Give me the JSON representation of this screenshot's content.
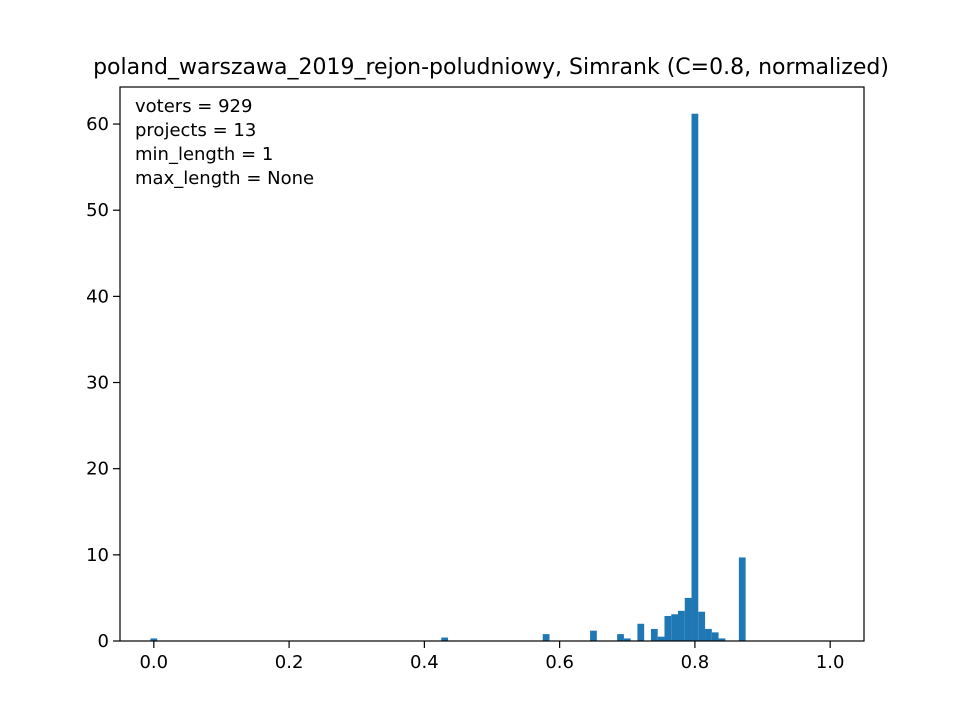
{
  "chart_data": {
    "type": "bar",
    "title": "poland_warszawa_2019_rejon-poludniowy, Simrank (C=0.8, normalized)",
    "xlabel": "",
    "ylabel": "",
    "xlim": [
      -0.05,
      1.05
    ],
    "ylim": [
      0,
      64.3
    ],
    "bin_width": 0.01,
    "x_ticks": [
      0.0,
      0.2,
      0.4,
      0.6,
      0.8,
      1.0
    ],
    "x_tick_labels": [
      "0.0",
      "0.2",
      "0.4",
      "0.6",
      "0.8",
      "1.0"
    ],
    "y_ticks": [
      0,
      10,
      20,
      30,
      40,
      50,
      60
    ],
    "y_tick_labels": [
      "0",
      "10",
      "20",
      "30",
      "40",
      "50",
      "60"
    ],
    "grid": false,
    "bar_color": "#1f77b4",
    "annotations": [
      "voters = 929",
      "projects = 13",
      "min_length = 1",
      "max_length = None"
    ],
    "bins": [
      {
        "x": 0.0,
        "value": 0.3
      },
      {
        "x": 0.43,
        "value": 0.4
      },
      {
        "x": 0.58,
        "value": 0.8
      },
      {
        "x": 0.65,
        "value": 1.2
      },
      {
        "x": 0.69,
        "value": 0.8
      },
      {
        "x": 0.7,
        "value": 0.3
      },
      {
        "x": 0.72,
        "value": 2.0
      },
      {
        "x": 0.74,
        "value": 1.4
      },
      {
        "x": 0.75,
        "value": 0.5
      },
      {
        "x": 0.76,
        "value": 2.9
      },
      {
        "x": 0.77,
        "value": 3.1
      },
      {
        "x": 0.78,
        "value": 3.5
      },
      {
        "x": 0.79,
        "value": 5.0
      },
      {
        "x": 0.8,
        "value": 61.2
      },
      {
        "x": 0.81,
        "value": 3.4
      },
      {
        "x": 0.82,
        "value": 1.4
      },
      {
        "x": 0.83,
        "value": 1.0
      },
      {
        "x": 0.84,
        "value": 0.3
      },
      {
        "x": 0.87,
        "value": 9.7
      }
    ]
  }
}
